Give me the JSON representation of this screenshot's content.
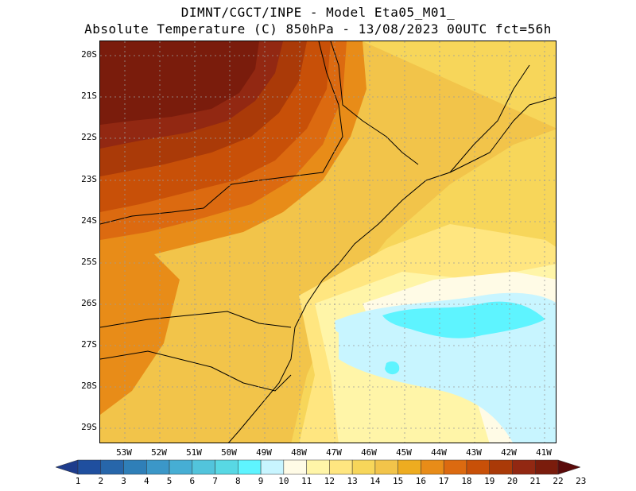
{
  "title_line1": "DIMNT/CGCT/INPE -  Model Eta05_M01_",
  "title_line2": "Absolute Temperature (C) 850hPa -  13/08/2023 00UTC fct=56h",
  "map": {
    "variable": "Absolute Temperature",
    "units": "C",
    "level": "850hPa",
    "lat_labels": [
      "20S",
      "21S",
      "22S",
      "23S",
      "24S",
      "25S",
      "26S",
      "27S",
      "28S",
      "29S"
    ],
    "lon_labels": [
      "53W",
      "52W",
      "51W",
      "50W",
      "49W",
      "48W",
      "47W",
      "46W",
      "45W",
      "44W",
      "43W",
      "42W",
      "41W"
    ]
  },
  "colorbar": {
    "labels": [
      "1",
      "2",
      "3",
      "4",
      "5",
      "6",
      "7",
      "8",
      "9",
      "10",
      "11",
      "12",
      "13",
      "14",
      "15",
      "16",
      "17",
      "18",
      "19",
      "20",
      "21",
      "22",
      "23"
    ],
    "colors": [
      "#1e3c8c",
      "#1f4f9f",
      "#2766aa",
      "#2f7fb8",
      "#3b97c8",
      "#46aed4",
      "#52c4dc",
      "#58d8e4",
      "#5ef4ff",
      "#c8f5ff",
      "#fffbe6",
      "#fff5a8",
      "#ffe680",
      "#f7d65a",
      "#f2c44a",
      "#eeac20",
      "#e88c18",
      "#dc6a10",
      "#c85008",
      "#aa3a08",
      "#922812",
      "#7a1c0c",
      "#5a0a0a"
    ]
  }
}
